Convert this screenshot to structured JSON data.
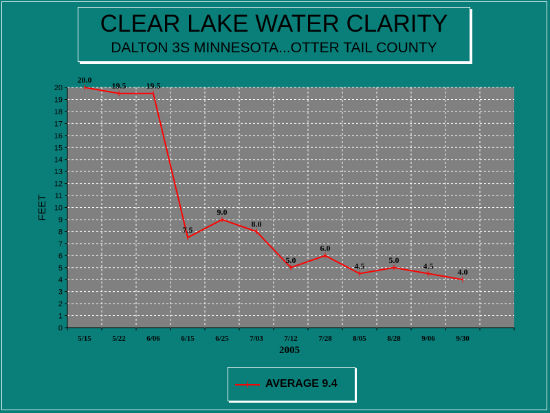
{
  "chart_data": {
    "type": "line",
    "title": "CLEAR LAKE WATER CLARITY",
    "subtitle": "DALTON 3S MINNESOTA...OTTER TAIL COUNTY",
    "xlabel": "2005",
    "ylabel": "FEET",
    "ylim": [
      0,
      20
    ],
    "yticks": [
      "0",
      "1",
      "2",
      "3",
      "4",
      "5",
      "6",
      "7",
      "8",
      "9",
      "10",
      "11",
      "12",
      "13",
      "14",
      "15",
      "16",
      "17",
      "18",
      "19",
      "20"
    ],
    "grid": true,
    "categories": [
      "5/15",
      "5/22",
      "6/06",
      "6/15",
      "6/25",
      "7/03",
      "7/12",
      "7/28",
      "8/05",
      "8/28",
      "9/06",
      "9/30"
    ],
    "series": [
      {
        "name": "AVERAGE 9.4",
        "color": "#ff0000",
        "values": [
          20.0,
          19.5,
          19.5,
          7.5,
          9.0,
          8.0,
          5.0,
          6.0,
          4.5,
          5.0,
          4.5,
          4.0
        ],
        "value_labels": [
          "20.0",
          "19.5",
          "19.5",
          "7.5",
          "9.0",
          "8.0",
          "5.0",
          "6.0",
          "4.5",
          "5.0",
          "4.5",
          "4.0"
        ]
      }
    ],
    "legend_position": "bottom-center",
    "plot_background": "#808080"
  }
}
